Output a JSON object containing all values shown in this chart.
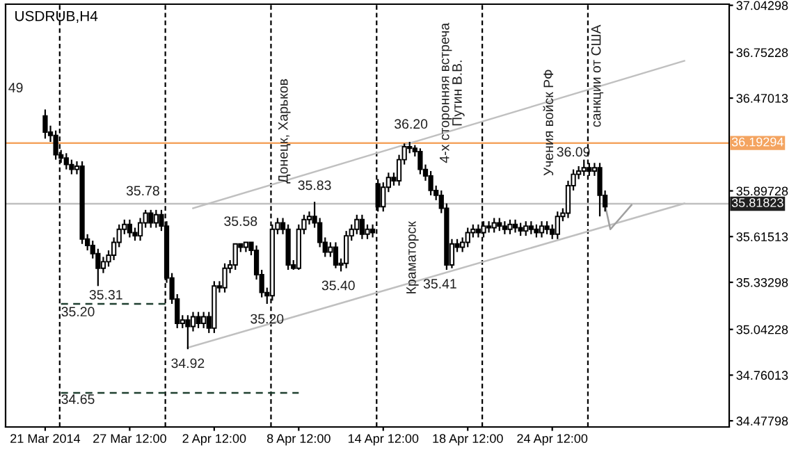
{
  "chart_data": {
    "type": "candlestick",
    "title": "USDRUB,H4",
    "categories": [
      "21 Mar 2014",
      null,
      null,
      null,
      null,
      null,
      null,
      null,
      null,
      null,
      null,
      null,
      null,
      null,
      null,
      null,
      "27 Mar 12:00",
      null,
      null,
      null,
      null,
      null,
      null,
      null,
      null,
      null,
      null,
      null,
      null,
      null,
      null,
      null,
      "2 Apr 12:00",
      null,
      null,
      null,
      null,
      null,
      null,
      null,
      null,
      null,
      null,
      null,
      null,
      null,
      null,
      null,
      "8 Apr 12:00",
      null,
      null,
      null,
      null,
      null,
      null,
      null,
      null,
      null,
      null,
      null,
      null,
      null,
      null,
      null,
      "14 Apr 12:00",
      null,
      null,
      null,
      null,
      null,
      null,
      null,
      null,
      null,
      null,
      null,
      null,
      null,
      null,
      null,
      "18 Apr 12:00",
      null,
      null,
      null,
      null,
      null,
      null,
      null,
      null,
      null,
      null,
      null,
      null,
      null,
      null,
      null,
      "24 Apr 12:00",
      null,
      null,
      null,
      null,
      null,
      null,
      null,
      null,
      null,
      null,
      null,
      null,
      null,
      null,
      null,
      null,
      null,
      null,
      null,
      null,
      null,
      null,
      null,
      null,
      null,
      null,
      null,
      null,
      null,
      null,
      null,
      null,
      null
    ],
    "ohlc": [
      [
        36.36,
        36.4,
        36.22,
        36.26
      ],
      [
        36.26,
        36.3,
        36.2,
        36.24
      ],
      [
        36.24,
        36.27,
        36.09,
        36.12
      ],
      [
        36.12,
        36.15,
        36.07,
        36.1
      ],
      [
        36.1,
        36.13,
        36.03,
        36.06
      ],
      [
        36.06,
        36.09,
        36.0,
        36.03
      ],
      [
        36.03,
        36.08,
        36.0,
        36.05
      ],
      [
        36.05,
        36.08,
        35.57,
        35.6
      ],
      [
        35.6,
        35.63,
        35.53,
        35.56
      ],
      [
        35.56,
        35.59,
        35.48,
        35.51
      ],
      [
        35.51,
        35.54,
        35.31,
        35.42
      ],
      [
        35.42,
        35.49,
        35.39,
        35.46
      ],
      [
        35.46,
        35.53,
        35.43,
        35.5
      ],
      [
        35.5,
        35.61,
        35.47,
        35.58
      ],
      [
        35.58,
        35.69,
        35.55,
        35.66
      ],
      [
        35.66,
        35.72,
        35.63,
        35.69
      ],
      [
        35.69,
        35.72,
        35.61,
        35.64
      ],
      [
        35.64,
        35.67,
        35.59,
        35.62
      ],
      [
        35.62,
        35.73,
        35.59,
        35.7
      ],
      [
        35.7,
        35.78,
        35.67,
        35.76
      ],
      [
        35.76,
        35.78,
        35.67,
        35.7
      ],
      [
        35.7,
        35.78,
        35.67,
        35.75
      ],
      [
        35.75,
        35.78,
        35.65,
        35.68
      ],
      [
        35.68,
        35.71,
        35.33,
        35.36
      ],
      [
        35.36,
        35.39,
        35.2,
        35.23
      ],
      [
        35.23,
        35.26,
        35.05,
        35.08
      ],
      [
        35.08,
        35.13,
        35.05,
        35.1
      ],
      [
        35.1,
        35.13,
        34.92,
        35.06
      ],
      [
        35.06,
        35.15,
        35.03,
        35.12
      ],
      [
        35.12,
        35.15,
        35.05,
        35.08
      ],
      [
        35.08,
        35.15,
        35.05,
        35.12
      ],
      [
        35.12,
        35.15,
        35.02,
        35.05
      ],
      [
        35.05,
        35.34,
        35.02,
        35.31
      ],
      [
        35.31,
        35.34,
        35.27,
        35.3
      ],
      [
        35.3,
        35.45,
        35.27,
        35.42
      ],
      [
        35.42,
        35.47,
        35.39,
        35.44
      ],
      [
        35.44,
        35.57,
        35.41,
        35.57
      ],
      [
        35.57,
        35.57,
        35.52,
        35.55
      ],
      [
        35.55,
        35.58,
        35.52,
        35.58
      ],
      [
        35.58,
        35.58,
        35.5,
        35.53
      ],
      [
        35.53,
        35.56,
        35.35,
        35.38
      ],
      [
        35.38,
        35.41,
        35.24,
        35.27
      ],
      [
        35.27,
        35.3,
        35.2,
        35.25
      ],
      [
        35.25,
        35.69,
        35.22,
        35.66
      ],
      [
        35.66,
        35.73,
        35.63,
        35.7
      ],
      [
        35.7,
        35.73,
        35.63,
        35.66
      ],
      [
        35.66,
        35.69,
        35.41,
        35.44
      ],
      [
        35.44,
        35.47,
        35.41,
        35.42
      ],
      [
        35.42,
        35.69,
        35.41,
        35.66
      ],
      [
        35.66,
        35.75,
        35.63,
        35.72
      ],
      [
        35.72,
        35.77,
        35.69,
        35.74
      ],
      [
        35.74,
        35.83,
        35.67,
        35.7
      ],
      [
        35.7,
        35.73,
        35.55,
        35.58
      ],
      [
        35.58,
        35.61,
        35.49,
        35.52
      ],
      [
        35.52,
        35.58,
        35.49,
        35.55
      ],
      [
        35.55,
        35.58,
        35.42,
        35.44
      ],
      [
        35.44,
        35.48,
        35.4,
        35.45
      ],
      [
        35.45,
        35.65,
        35.42,
        35.62
      ],
      [
        35.62,
        35.69,
        35.59,
        35.66
      ],
      [
        35.66,
        35.75,
        35.63,
        35.72
      ],
      [
        35.72,
        35.75,
        35.6,
        35.63
      ],
      [
        35.63,
        35.69,
        35.6,
        35.66
      ],
      [
        35.66,
        35.69,
        35.61,
        35.64
      ],
      [
        35.94,
        35.97,
        35.77,
        35.8
      ],
      [
        35.8,
        35.95,
        35.77,
        35.92
      ],
      [
        35.92,
        36.01,
        35.89,
        35.98
      ],
      [
        35.98,
        36.01,
        35.93,
        35.96
      ],
      [
        35.96,
        36.12,
        35.93,
        36.09
      ],
      [
        36.09,
        36.19,
        36.06,
        36.17
      ],
      [
        36.17,
        36.2,
        36.13,
        36.16
      ],
      [
        36.16,
        36.18,
        36.11,
        36.14
      ],
      [
        36.14,
        36.16,
        36.0,
        36.03
      ],
      [
        36.03,
        36.06,
        35.96,
        35.99
      ],
      [
        35.99,
        36.02,
        35.87,
        35.9
      ],
      [
        35.9,
        35.93,
        35.84,
        35.87
      ],
      [
        35.87,
        35.9,
        35.76,
        35.79
      ],
      [
        35.79,
        35.82,
        35.41,
        35.44
      ],
      [
        35.44,
        35.6,
        35.42,
        35.57
      ],
      [
        35.57,
        35.6,
        35.52,
        35.55
      ],
      [
        35.55,
        35.61,
        35.52,
        35.58
      ],
      [
        35.58,
        35.67,
        35.55,
        35.64
      ],
      [
        35.64,
        35.69,
        35.61,
        35.66
      ],
      [
        35.66,
        35.69,
        35.61,
        35.64
      ],
      [
        35.64,
        35.71,
        35.61,
        35.68
      ],
      [
        35.68,
        35.71,
        35.64,
        35.67
      ],
      [
        35.67,
        35.73,
        35.64,
        35.7
      ],
      [
        35.7,
        35.73,
        35.65,
        35.68
      ],
      [
        35.68,
        35.71,
        35.63,
        35.66
      ],
      [
        35.66,
        35.72,
        35.63,
        35.69
      ],
      [
        35.69,
        35.72,
        35.64,
        35.67
      ],
      [
        35.67,
        35.7,
        35.62,
        35.65
      ],
      [
        35.65,
        35.71,
        35.62,
        35.68
      ],
      [
        35.68,
        35.71,
        35.63,
        35.66
      ],
      [
        35.66,
        35.69,
        35.61,
        35.64
      ],
      [
        35.64,
        35.71,
        35.61,
        35.68
      ],
      [
        35.68,
        35.71,
        35.63,
        35.66
      ],
      [
        35.66,
        35.69,
        35.6,
        35.63
      ],
      [
        35.63,
        35.77,
        35.6,
        35.74
      ],
      [
        35.74,
        35.79,
        35.71,
        35.76
      ],
      [
        35.76,
        35.96,
        35.73,
        35.93
      ],
      [
        35.93,
        36.03,
        35.9,
        36.0
      ],
      [
        36.0,
        36.05,
        35.97,
        36.02
      ],
      [
        36.02,
        36.09,
        35.99,
        36.04
      ],
      [
        36.04,
        36.07,
        35.99,
        36.02
      ],
      [
        36.02,
        36.07,
        35.99,
        36.04
      ],
      [
        36.04,
        36.07,
        35.74,
        35.87
      ],
      [
        35.87,
        35.9,
        35.77,
        35.8
      ],
      null,
      null,
      null,
      null,
      null,
      null,
      null,
      null,
      null,
      null,
      null,
      null,
      null,
      null,
      null,
      null,
      null,
      null,
      null,
      null,
      null,
      null,
      null
    ],
    "series": [
      {
        "type": "line",
        "color": "#1f3f2f",
        "line_style": "dashed",
        "values": [
          null,
          null,
          null,
          35.2,
          null,
          null,
          null,
          null,
          null,
          null,
          null,
          null,
          null,
          null,
          null,
          null,
          null,
          null,
          null,
          null,
          null,
          null,
          null,
          35.2,
          null,
          null,
          null,
          null,
          null,
          null,
          null,
          null,
          null,
          null,
          null,
          null,
          null,
          null,
          null,
          null,
          null,
          null,
          null,
          null,
          null,
          null,
          null,
          null,
          null,
          null,
          null,
          null,
          null,
          null,
          null,
          null,
          null,
          null,
          null,
          null,
          null,
          null,
          null,
          null,
          null,
          null,
          null,
          null,
          null,
          null,
          null,
          null,
          null,
          null,
          null,
          null,
          null,
          null,
          null,
          null,
          null,
          null,
          null,
          null,
          null,
          null,
          null,
          null,
          null,
          null,
          null,
          null,
          null,
          null,
          null,
          null,
          null,
          null,
          null,
          null,
          null,
          null,
          null,
          null,
          null,
          null,
          null,
          null,
          null,
          null,
          null,
          null,
          null,
          null,
          null,
          null,
          null,
          null,
          null,
          null,
          null,
          null,
          null,
          null,
          null,
          null,
          null,
          null,
          null,
          null
        ]
      },
      {
        "type": "line",
        "color": "#1f3f2f",
        "line_style": "dashed",
        "values": [
          null,
          null,
          null,
          34.65,
          null,
          null,
          null,
          null,
          null,
          null,
          null,
          null,
          null,
          null,
          null,
          null,
          null,
          null,
          null,
          null,
          null,
          null,
          null,
          null,
          null,
          null,
          null,
          null,
          null,
          null,
          null,
          null,
          null,
          null,
          null,
          null,
          null,
          null,
          null,
          null,
          null,
          null,
          null,
          null,
          null,
          null,
          null,
          null,
          34.65,
          null,
          null,
          null,
          null,
          null,
          null,
          null,
          null,
          null,
          null,
          null,
          null,
          null,
          null,
          null,
          null,
          null,
          null,
          null,
          null,
          null,
          null,
          null,
          null,
          null,
          null,
          null,
          null,
          null,
          null,
          null,
          null,
          null,
          null,
          null,
          null,
          null,
          null,
          null,
          null,
          null,
          null,
          null,
          null,
          null,
          null,
          null,
          null,
          null,
          null,
          null,
          null,
          null,
          null,
          null,
          null,
          null,
          null,
          null,
          null,
          null,
          null,
          null,
          null,
          null,
          null,
          null,
          null,
          null,
          null,
          null,
          null,
          null,
          null,
          null,
          null,
          null,
          null,
          null,
          null,
          null
        ]
      },
      {
        "type": "line",
        "color": "#c0c0c0",
        "line_style": "solid",
        "values": [
          null,
          null,
          null,
          null,
          null,
          null,
          null,
          null,
          null,
          null,
          null,
          null,
          null,
          null,
          null,
          null,
          null,
          null,
          null,
          null,
          null,
          null,
          null,
          null,
          null,
          null,
          null,
          null,
          35.79,
          null,
          null,
          null,
          null,
          null,
          null,
          null,
          null,
          null,
          null,
          null,
          null,
          null,
          null,
          null,
          null,
          null,
          null,
          null,
          null,
          null,
          null,
          null,
          null,
          null,
          null,
          null,
          null,
          null,
          null,
          null,
          null,
          null,
          null,
          null,
          null,
          null,
          null,
          null,
          null,
          null,
          null,
          null,
          null,
          null,
          null,
          null,
          null,
          null,
          null,
          null,
          null,
          null,
          null,
          null,
          null,
          null,
          null,
          null,
          null,
          null,
          null,
          null,
          null,
          null,
          null,
          null,
          null,
          null,
          null,
          null,
          null,
          null,
          null,
          null,
          null,
          null,
          null,
          null,
          null,
          null,
          null,
          null,
          null,
          null,
          null,
          null,
          null,
          null,
          null,
          null,
          null,
          36.7,
          null,
          null,
          null,
          null,
          null,
          null,
          null,
          null
        ]
      },
      {
        "type": "line",
        "color": "#c0c0c0",
        "line_style": "solid",
        "values": [
          null,
          null,
          null,
          null,
          null,
          null,
          null,
          null,
          null,
          null,
          null,
          null,
          null,
          null,
          null,
          null,
          null,
          null,
          null,
          null,
          null,
          null,
          null,
          null,
          null,
          null,
          null,
          34.93,
          null,
          null,
          null,
          null,
          null,
          null,
          null,
          null,
          null,
          null,
          null,
          null,
          null,
          null,
          null,
          null,
          null,
          null,
          null,
          null,
          null,
          null,
          null,
          null,
          null,
          null,
          null,
          null,
          null,
          null,
          null,
          null,
          null,
          null,
          null,
          null,
          null,
          null,
          null,
          null,
          null,
          null,
          null,
          null,
          null,
          null,
          null,
          null,
          null,
          null,
          null,
          null,
          null,
          null,
          null,
          null,
          null,
          null,
          null,
          null,
          null,
          null,
          null,
          null,
          null,
          null,
          null,
          null,
          null,
          null,
          null,
          null,
          null,
          null,
          null,
          null,
          null,
          null,
          null,
          null,
          null,
          null,
          null,
          null,
          null,
          null,
          null,
          null,
          null,
          null,
          null,
          null,
          null,
          35.82,
          null,
          null,
          null,
          null,
          null,
          null,
          null,
          null
        ]
      },
      {
        "type": "line",
        "color": "#a0a0a0",
        "line_style": "solid",
        "values": [
          null,
          null,
          null,
          null,
          null,
          null,
          null,
          null,
          null,
          null,
          null,
          null,
          null,
          null,
          null,
          null,
          null,
          null,
          null,
          null,
          null,
          null,
          null,
          null,
          null,
          null,
          null,
          null,
          null,
          null,
          null,
          null,
          null,
          null,
          null,
          null,
          null,
          null,
          null,
          null,
          null,
          null,
          null,
          null,
          null,
          null,
          null,
          null,
          null,
          null,
          null,
          null,
          null,
          null,
          null,
          null,
          null,
          null,
          null,
          null,
          null,
          null,
          null,
          null,
          null,
          null,
          null,
          null,
          null,
          null,
          null,
          null,
          null,
          null,
          null,
          null,
          null,
          null,
          null,
          null,
          null,
          null,
          null,
          null,
          null,
          null,
          null,
          null,
          null,
          null,
          null,
          null,
          null,
          null,
          null,
          null,
          null,
          null,
          null,
          null,
          null,
          null,
          null,
          null,
          null,
          null,
          35.81,
          35.66,
          null,
          null,
          null,
          35.81,
          null,
          null,
          null,
          null,
          null,
          null,
          null,
          null,
          null,
          null,
          null,
          null,
          null,
          null,
          null,
          null,
          null,
          null
        ]
      }
    ],
    "ylim": [
      34.44,
      37.05
    ],
    "yticks": [
      37.04298,
      36.75228,
      36.47013,
      35.89728,
      35.61513,
      35.33298,
      35.04228,
      34.76013,
      34.47798
    ],
    "ref_lines": [
      {
        "axis": "y",
        "value": 36.19294,
        "label": "36.19294",
        "color": "#f4a460",
        "line_style": "solid"
      },
      {
        "axis": "y",
        "value": 35.81823,
        "label": "35.81823",
        "color": "#c0c0c0",
        "line_style": "solid"
      }
    ],
    "annotations": [
      "49",
      "Донецк, Харьков",
      "Краматорск",
      "4-х сторонняя встреча\nПутин В.В.",
      "Учения войск РФ",
      "санкции от США",
      "35.20",
      "34.65",
      "35.31",
      "35.78",
      "34.92",
      "35.58",
      "35.20",
      "35.83",
      "35.40",
      "36.20",
      "35.41",
      "36.09"
    ],
    "grid": false,
    "legend": false
  }
}
